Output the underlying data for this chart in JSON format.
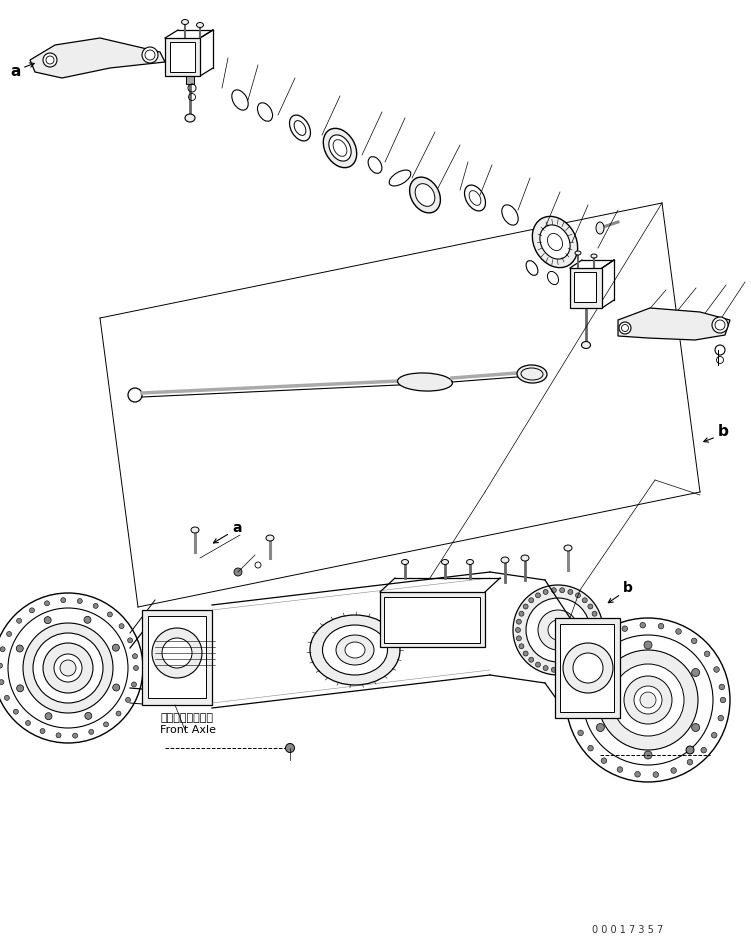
{
  "background_color": "#ffffff",
  "line_color": "#000000",
  "watermark_text": "0 0 0 1 7 3 5 7",
  "label_a_top": "a",
  "label_b_top": "b",
  "label_a_bottom": "a",
  "label_b_bottom": "b",
  "front_axle_jp": "フロントアクスル",
  "front_axle_en": "Front Axle",
  "gray_fill": "#d8d8d8",
  "light_gray": "#eeeeee",
  "mid_gray": "#bbbbbb"
}
